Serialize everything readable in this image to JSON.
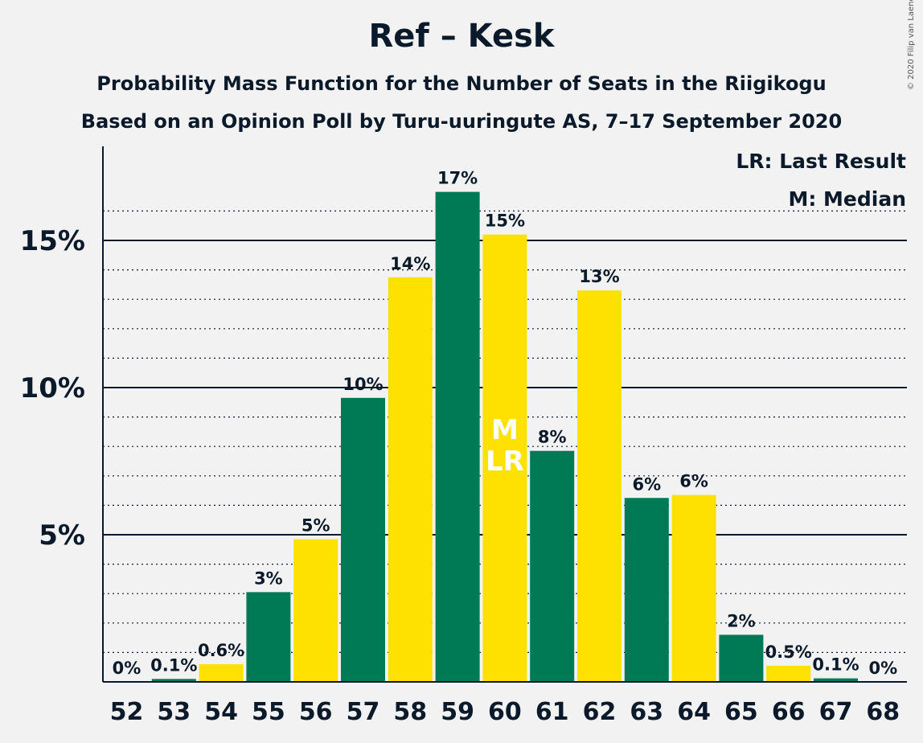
{
  "header": {
    "title": "Ref – Kesk",
    "subtitle": "Probability Mass Function for the Number of Seats in the Riigikogu",
    "subtitle2": "Based on an Opinion Poll by Turu-uuringute AS, 7–17 September 2020",
    "copyright": "© 2020 Filip van Laenen"
  },
  "legend": {
    "last_result": "LR: Last Result",
    "median": "M: Median"
  },
  "colors": {
    "green": "#007A55",
    "yellow": "#FFE100",
    "background": "#f2f2f2",
    "text": "#0b1a2a"
  },
  "chart_data": {
    "type": "bar",
    "title": "Ref – Kesk",
    "xlabel": "",
    "ylabel": "",
    "ylim": [
      0,
      18
    ],
    "yticks": [
      {
        "value": 5,
        "label": "5%"
      },
      {
        "value": 10,
        "label": "10%"
      },
      {
        "value": 15,
        "label": "15%"
      }
    ],
    "categories": [
      "52",
      "53",
      "54",
      "55",
      "56",
      "57",
      "58",
      "59",
      "60",
      "61",
      "62",
      "63",
      "64",
      "65",
      "66",
      "67",
      "68"
    ],
    "values": [
      0,
      0.1,
      0.6,
      3.05,
      4.85,
      9.65,
      13.75,
      16.65,
      15.2,
      7.85,
      13.3,
      6.25,
      6.35,
      1.6,
      0.55,
      0.12,
      0
    ],
    "labels": [
      "0%",
      "0.1%",
      "0.6%",
      "3%",
      "5%",
      "10%",
      "14%",
      "17%",
      "15%",
      "8%",
      "13%",
      "6%",
      "6%",
      "2%",
      "0.5%",
      "0.1%",
      "0%"
    ],
    "median": "60",
    "last_result": "60",
    "median_marker": "M",
    "last_result_marker": "LR",
    "grid": true,
    "legend_position": "top-right"
  }
}
